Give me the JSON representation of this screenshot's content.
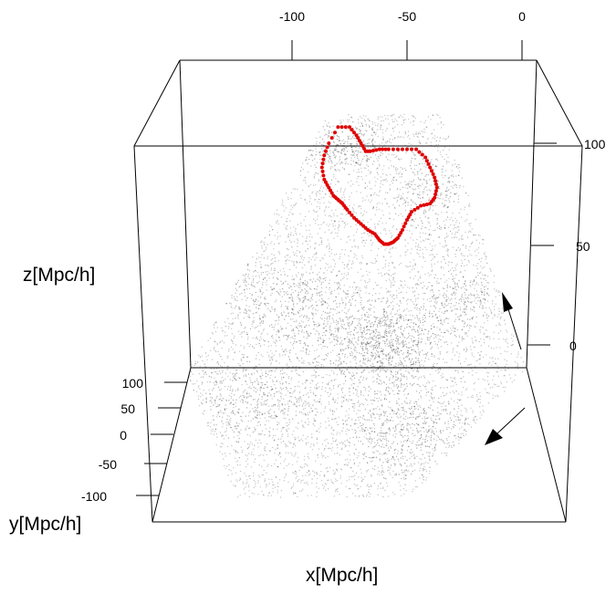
{
  "chart_data": {
    "type": "scatter",
    "subtype": "3d-point-cloud",
    "title": "",
    "xlabel": "x[Mpc/h]",
    "ylabel": "y[Mpc/h]",
    "zlabel": "z[Mpc/h]",
    "x_ticks": [
      "-100",
      "-50",
      "0"
    ],
    "y_ticks": [
      "100",
      "50",
      "0",
      "-50",
      "-100"
    ],
    "z_ticks": [
      "100",
      "50",
      "0"
    ],
    "grid": false,
    "legend": "none",
    "series": [
      {
        "role": "galaxy-points",
        "color": "#000000",
        "marker": "tiny-translucent-dot"
      },
      {
        "role": "highlighted-loop",
        "color": "#e00000",
        "marker": "dot",
        "x": [
          -80,
          -75,
          -72,
          -70,
          -68,
          -66,
          -62,
          -58,
          -52,
          -46,
          -42,
          -40,
          -38,
          -37,
          -38,
          -40,
          -44,
          -48,
          -50,
          -52,
          -54,
          -56,
          -58,
          -60,
          -62,
          -64,
          -67,
          -70,
          -73,
          -76,
          -78,
          -80,
          -82,
          -84,
          -86,
          -87,
          -86,
          -84
        ],
        "z": [
          108,
          108,
          104,
          100,
          96,
          96,
          97,
          97,
          97,
          97,
          93,
          88,
          83,
          78,
          73,
          70,
          69,
          66,
          62,
          57,
          53,
          51,
          50,
          50,
          52,
          55,
          57,
          60,
          63,
          67,
          70,
          72,
          74,
          78,
          82,
          88,
          94,
          100
        ]
      }
    ],
    "annotations": [
      {
        "type": "arrow",
        "direction": "up"
      },
      {
        "type": "arrow",
        "direction": "toward-viewer"
      }
    ]
  }
}
